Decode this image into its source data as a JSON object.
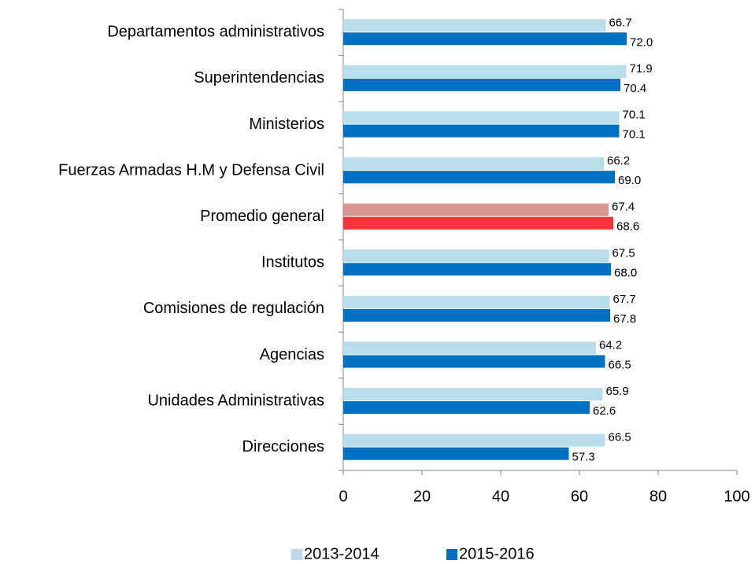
{
  "chart_data": {
    "type": "barh",
    "categories": [
      "Departamentos administrativos",
      "Superintendencias",
      "Ministerios",
      "Fuerzas Armadas H.M y Defensa Civil",
      "Promedio general",
      "Institutos",
      "Comisiones de regulación",
      "Agencias",
      "Unidades Administrativas",
      "Direcciones"
    ],
    "series": [
      {
        "name": "2013-2014",
        "color": "#b7dde8",
        "colors": [
          "#b7dde8",
          "#b7dde8",
          "#b7dde8",
          "#b7dde8",
          "#d99594",
          "#b7dde8",
          "#b7dde8",
          "#b7dde8",
          "#b7dde8",
          "#b7dde8"
        ],
        "values": [
          66.7,
          71.9,
          70.1,
          66.2,
          67.4,
          67.5,
          67.7,
          64.2,
          65.9,
          66.5
        ],
        "value_labels": [
          "66.7",
          "71.9",
          "70.1",
          "66.2",
          "67.4",
          "67.5",
          "67.7",
          "64.2",
          "65.9",
          "66.5"
        ]
      },
      {
        "name": "2015-2016",
        "color": "#0070c0",
        "colors": [
          "#0070c0",
          "#0070c0",
          "#0070c0",
          "#0070c0",
          "#f4343d",
          "#0070c0",
          "#0070c0",
          "#0070c0",
          "#0070c0",
          "#0070c0"
        ],
        "values": [
          72,
          70.4,
          70.1,
          69,
          68.6,
          68,
          67.8,
          66.5,
          62.6,
          57.3
        ],
        "value_labels": [
          "72.0",
          "70.4",
          "70.1",
          "69.0",
          "68.6",
          "68.0",
          "67.8",
          "66.5",
          "62.6",
          "57.3"
        ]
      }
    ],
    "xlim": [
      0,
      100
    ],
    "xticks": [
      0,
      20,
      40,
      60,
      80,
      100
    ],
    "grid": false,
    "legend": "bottom"
  }
}
